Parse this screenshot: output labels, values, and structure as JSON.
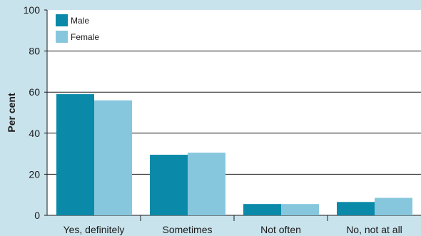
{
  "chart_data": {
    "type": "bar",
    "title": "",
    "xlabel": "",
    "ylabel": "Per cent",
    "ylim": [
      0,
      100
    ],
    "yticks": [
      0,
      20,
      40,
      60,
      80,
      100
    ],
    "grid": true,
    "legend_position": "top-left",
    "categories": [
      "Yes, definitely",
      "Sometimes",
      "Not often",
      "No, not at all"
    ],
    "series": [
      {
        "name": "Male",
        "color": "#0a8aa8",
        "values": [
          59,
          29.5,
          5.5,
          6.5
        ]
      },
      {
        "name": "Female",
        "color": "#86c7dd",
        "values": [
          56,
          30.5,
          5.5,
          8.5
        ]
      }
    ]
  },
  "colors": {
    "background": "#c9e3ec",
    "plot_background": "#ffffff",
    "gridline": "#1a1a1a"
  }
}
